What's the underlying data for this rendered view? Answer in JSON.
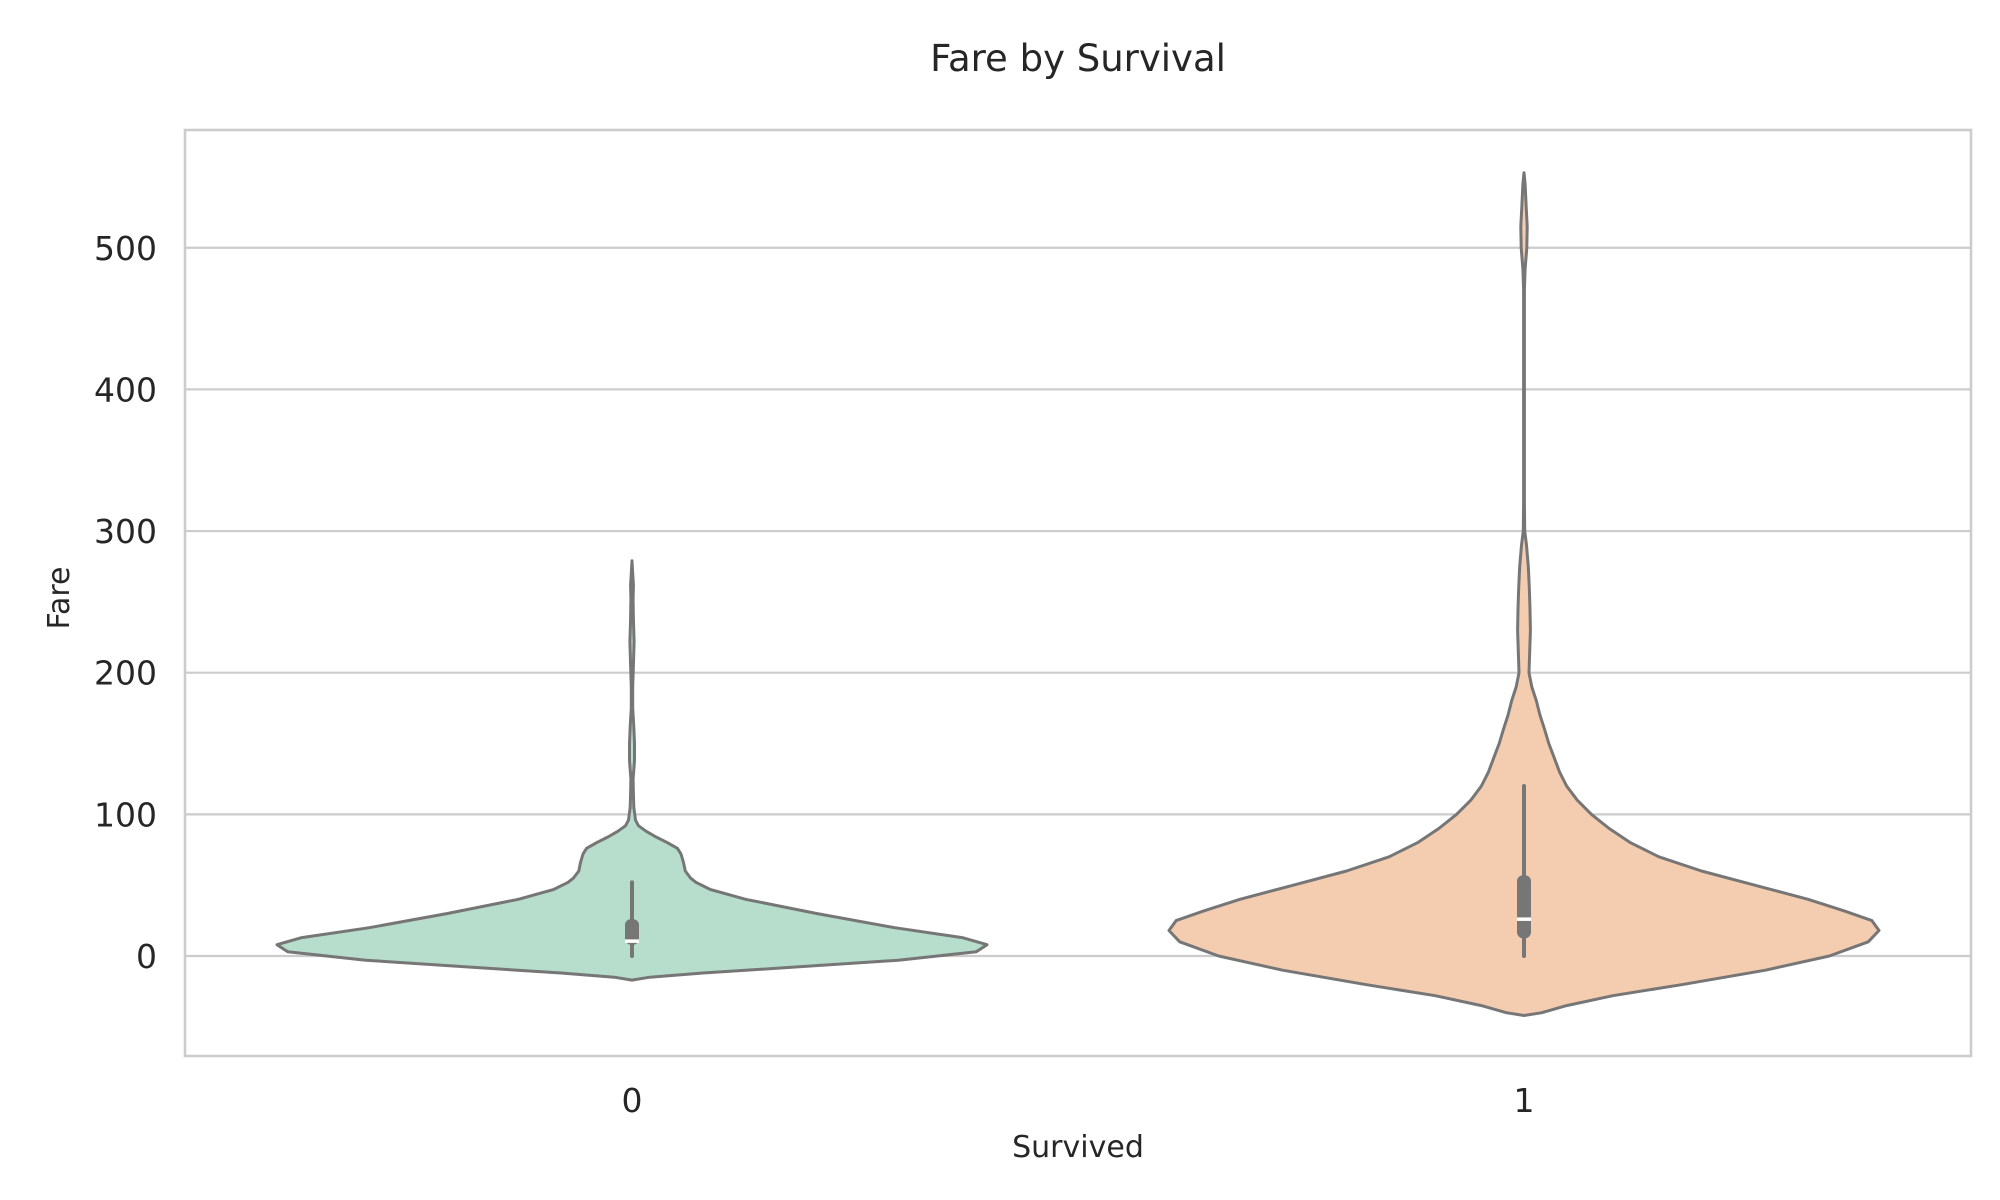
{
  "chart_data": {
    "type": "violin",
    "title": "Fare by Survival",
    "xlabel": "Survived",
    "ylabel": "Fare",
    "categories": [
      "0",
      "1"
    ],
    "ylim": [
      -70,
      585
    ],
    "yticks": [
      0,
      100,
      200,
      300,
      400,
      500
    ],
    "grid": "horizontal",
    "legend": "none",
    "colors": {
      "0": "#b7ddcc",
      "1": "#f4cdb1",
      "outline": "#767676",
      "median": "#ffffff",
      "grid": "#cccccc"
    },
    "series": [
      {
        "category": "0",
        "box": {
          "whisker_low": 0,
          "q1": 7.9,
          "median": 10.5,
          "q3": 26.0,
          "whisker_high": 52
        },
        "density": [
          [
            -17,
            0.0
          ],
          [
            -15,
            0.05
          ],
          [
            -12,
            0.2
          ],
          [
            -8,
            0.45
          ],
          [
            -3,
            0.75
          ],
          [
            3,
            0.97
          ],
          [
            8,
            1.0
          ],
          [
            13,
            0.93
          ],
          [
            20,
            0.74
          ],
          [
            30,
            0.52
          ],
          [
            40,
            0.32
          ],
          [
            47,
            0.22
          ],
          [
            52,
            0.18
          ],
          [
            55,
            0.165
          ],
          [
            60,
            0.15
          ],
          [
            66,
            0.145
          ],
          [
            72,
            0.138
          ],
          [
            76,
            0.128
          ],
          [
            80,
            0.1
          ],
          [
            84,
            0.068
          ],
          [
            88,
            0.04
          ],
          [
            92,
            0.018
          ],
          [
            96,
            0.01
          ],
          [
            105,
            0.005
          ],
          [
            115,
            0.004
          ],
          [
            125,
            0.003
          ],
          [
            138,
            0.007
          ],
          [
            150,
            0.007
          ],
          [
            162,
            0.005
          ],
          [
            175,
            0.002
          ],
          [
            190,
            0.002
          ],
          [
            205,
            0.004
          ],
          [
            222,
            0.006
          ],
          [
            238,
            0.004
          ],
          [
            252,
            0.003
          ],
          [
            262,
            0.004
          ],
          [
            270,
            0.002
          ],
          [
            279,
            0.0
          ]
        ]
      },
      {
        "category": "1",
        "box": {
          "whisker_low": 0,
          "q1": 12.5,
          "median": 26.0,
          "q3": 57.0,
          "whisker_high": 120
        },
        "density": [
          [
            -42,
            0.0
          ],
          [
            -40,
            0.05
          ],
          [
            -35,
            0.12
          ],
          [
            -28,
            0.25
          ],
          [
            -20,
            0.45
          ],
          [
            -10,
            0.68
          ],
          [
            0,
            0.86
          ],
          [
            10,
            0.97
          ],
          [
            18,
            1.0
          ],
          [
            25,
            0.98
          ],
          [
            32,
            0.9
          ],
          [
            40,
            0.8
          ],
          [
            50,
            0.65
          ],
          [
            60,
            0.5
          ],
          [
            70,
            0.38
          ],
          [
            80,
            0.3
          ],
          [
            90,
            0.24
          ],
          [
            100,
            0.19
          ],
          [
            110,
            0.15
          ],
          [
            120,
            0.12
          ],
          [
            130,
            0.1
          ],
          [
            140,
            0.085
          ],
          [
            150,
            0.07
          ],
          [
            160,
            0.058
          ],
          [
            170,
            0.045
          ],
          [
            180,
            0.035
          ],
          [
            190,
            0.022
          ],
          [
            200,
            0.014
          ],
          [
            215,
            0.016
          ],
          [
            230,
            0.018
          ],
          [
            245,
            0.017
          ],
          [
            260,
            0.015
          ],
          [
            275,
            0.012
          ],
          [
            290,
            0.007
          ],
          [
            300,
            0.002
          ],
          [
            320,
            0.001
          ],
          [
            360,
            0.001
          ],
          [
            400,
            0.001
          ],
          [
            440,
            0.001
          ],
          [
            470,
            0.001
          ],
          [
            485,
            0.003
          ],
          [
            500,
            0.008
          ],
          [
            515,
            0.009
          ],
          [
            530,
            0.006
          ],
          [
            545,
            0.003
          ],
          [
            553,
            0.0
          ]
        ]
      }
    ]
  }
}
